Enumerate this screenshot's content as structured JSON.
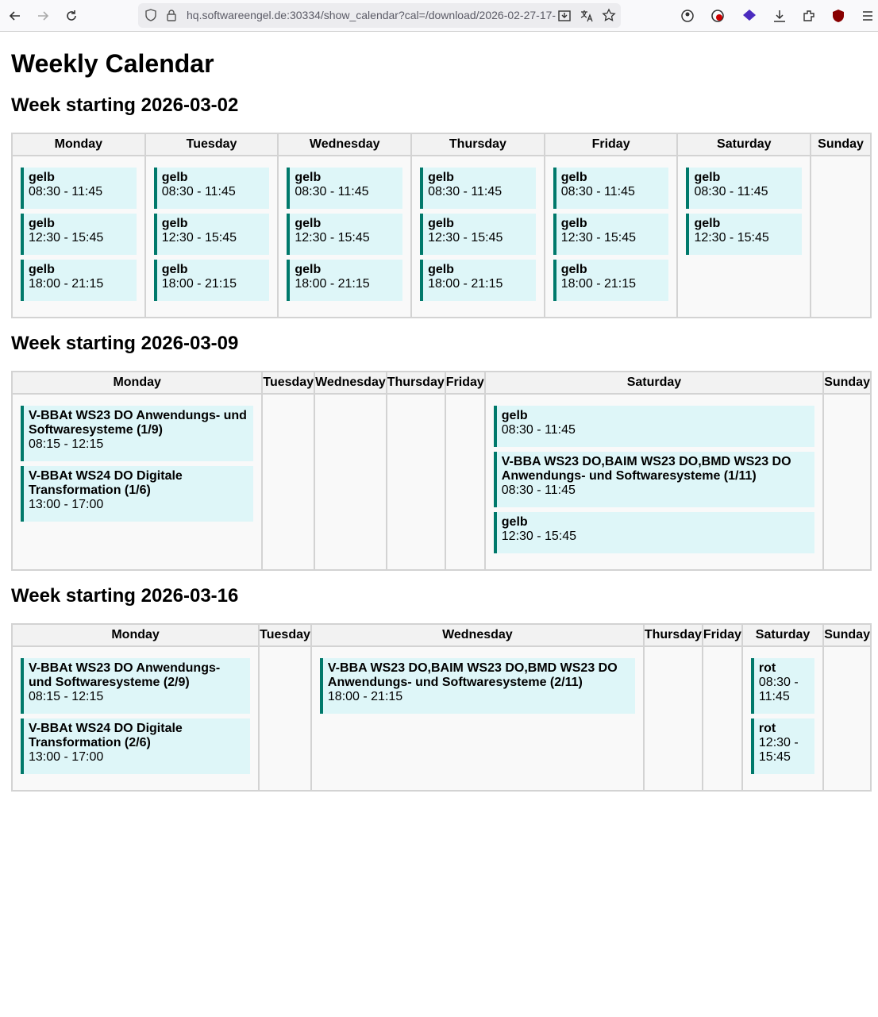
{
  "browser": {
    "url": "hq.softwareengel.de:30334/show_calendar?cal=/download/2026-02-27-17-"
  },
  "page": {
    "title": "Weekly Calendar",
    "weeks": [
      {
        "heading": "Week starting 2026-03-02",
        "days": [
          {
            "name": "Monday",
            "events": [
              {
                "title": "gelb",
                "time": "08:30 - 11:45"
              },
              {
                "title": "gelb",
                "time": "12:30 - 15:45"
              },
              {
                "title": "gelb",
                "time": "18:00 - 21:15"
              }
            ]
          },
          {
            "name": "Tuesday",
            "events": [
              {
                "title": "gelb",
                "time": "08:30 - 11:45"
              },
              {
                "title": "gelb",
                "time": "12:30 - 15:45"
              },
              {
                "title": "gelb",
                "time": "18:00 - 21:15"
              }
            ]
          },
          {
            "name": "Wednesday",
            "events": [
              {
                "title": "gelb",
                "time": "08:30 - 11:45"
              },
              {
                "title": "gelb",
                "time": "12:30 - 15:45"
              },
              {
                "title": "gelb",
                "time": "18:00 - 21:15"
              }
            ]
          },
          {
            "name": "Thursday",
            "events": [
              {
                "title": "gelb",
                "time": "08:30 - 11:45"
              },
              {
                "title": "gelb",
                "time": "12:30 - 15:45"
              },
              {
                "title": "gelb",
                "time": "18:00 - 21:15"
              }
            ]
          },
          {
            "name": "Friday",
            "events": [
              {
                "title": "gelb",
                "time": "08:30 - 11:45"
              },
              {
                "title": "gelb",
                "time": "12:30 - 15:45"
              },
              {
                "title": "gelb",
                "time": "18:00 - 21:15"
              }
            ]
          },
          {
            "name": "Saturday",
            "events": [
              {
                "title": "gelb",
                "time": "08:30 - 11:45"
              },
              {
                "title": "gelb",
                "time": "12:30 - 15:45"
              }
            ]
          },
          {
            "name": "Sunday",
            "events": []
          }
        ]
      },
      {
        "heading": "Week starting 2026-03-09",
        "days": [
          {
            "name": "Monday",
            "events": [
              {
                "title": "V-BBAt WS23 DO Anwendungs- und Softwaresysteme (1/9)",
                "time": "08:15 - 12:15"
              },
              {
                "title": "V-BBAt WS24 DO Digitale Transformation (1/6)",
                "time": "13:00 - 17:00"
              }
            ]
          },
          {
            "name": "Tuesday",
            "events": []
          },
          {
            "name": "Wednesday",
            "events": []
          },
          {
            "name": "Thursday",
            "events": []
          },
          {
            "name": "Friday",
            "events": []
          },
          {
            "name": "Saturday",
            "events": [
              {
                "title": "gelb",
                "time": "08:30 - 11:45"
              },
              {
                "title": "V-BBA WS23 DO,BAIM WS23 DO,BMD WS23 DO Anwendungs- und Softwaresysteme (1/11)",
                "time": "08:30 - 11:45"
              },
              {
                "title": "gelb",
                "time": "12:30 - 15:45"
              }
            ]
          },
          {
            "name": "Sunday",
            "events": []
          }
        ]
      },
      {
        "heading": "Week starting 2026-03-16",
        "days": [
          {
            "name": "Monday",
            "events": [
              {
                "title": "V-BBAt WS23 DO Anwendungs- und Softwaresysteme (2/9)",
                "time": "08:15 - 12:15"
              },
              {
                "title": "V-BBAt WS24 DO Digitale Transformation (2/6)",
                "time": "13:00 - 17:00"
              }
            ]
          },
          {
            "name": "Tuesday",
            "events": []
          },
          {
            "name": "Wednesday",
            "events": [
              {
                "title": "V-BBA WS23 DO,BAIM WS23 DO,BMD WS23 DO Anwendungs- und Softwaresysteme (2/11)",
                "time": "18:00 - 21:15"
              }
            ]
          },
          {
            "name": "Thursday",
            "events": []
          },
          {
            "name": "Friday",
            "events": []
          },
          {
            "name": "Saturday",
            "events": [
              {
                "title": "rot",
                "time": "08:30 - 11:45"
              },
              {
                "title": "rot",
                "time": "12:30 - 15:45"
              }
            ]
          },
          {
            "name": "Sunday",
            "events": []
          }
        ]
      }
    ]
  }
}
